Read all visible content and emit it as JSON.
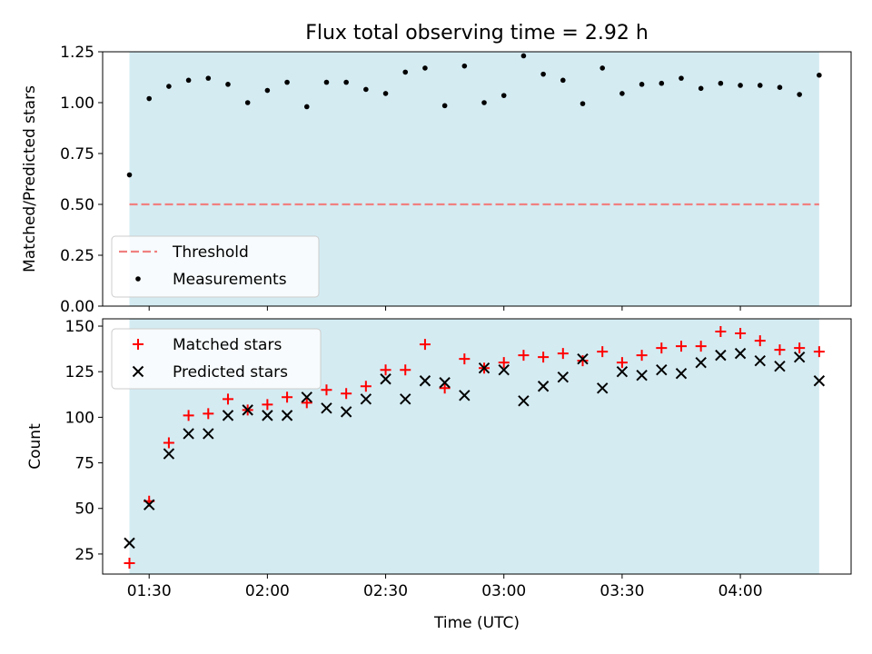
{
  "title": "Flux total observing time = 2.92 h",
  "colors": {
    "shade": "#add8e6",
    "threshold": "#f08080",
    "matched": "#ff0000",
    "predicted": "#000000",
    "measurement": "#000000"
  },
  "chart_data": [
    {
      "type": "scatter",
      "ylabel": "Matched/Predicted stars",
      "xlabel": "",
      "ylim": [
        0,
        1.25
      ],
      "yticks": [
        "0.00",
        "0.25",
        "0.50",
        "0.75",
        "1.00",
        "1.25"
      ],
      "x_span": [
        "01:25",
        "04:20"
      ],
      "legend_position": "lower-left",
      "threshold": {
        "name": "Threshold",
        "value": 0.5,
        "style": "dashed"
      },
      "series": [
        {
          "name": "Measurements",
          "x": [
            "01:25",
            "01:30",
            "01:35",
            "01:40",
            "01:45",
            "01:50",
            "01:55",
            "02:00",
            "02:05",
            "02:10",
            "02:15",
            "02:20",
            "02:25",
            "02:30",
            "02:35",
            "02:40",
            "02:45",
            "02:50",
            "02:55",
            "03:00",
            "03:05",
            "03:10",
            "03:15",
            "03:20",
            "03:25",
            "03:30",
            "03:35",
            "03:40",
            "03:45",
            "03:50",
            "03:55",
            "04:00",
            "04:05",
            "04:10",
            "04:15",
            "04:20"
          ],
          "y": [
            0.645,
            1.02,
            1.08,
            1.11,
            1.12,
            1.09,
            1.0,
            1.06,
            1.1,
            0.98,
            1.1,
            1.1,
            1.065,
            1.045,
            1.15,
            1.17,
            0.985,
            1.18,
            1.0,
            1.035,
            1.23,
            1.14,
            1.11,
            0.995,
            1.17,
            1.045,
            1.09,
            1.095,
            1.12,
            1.07,
            1.095,
            1.085,
            1.085,
            1.075,
            1.04,
            1.135
          ]
        }
      ]
    },
    {
      "type": "scatter",
      "ylabel": "Count",
      "xlabel": "Time (UTC)",
      "ylim": [
        14,
        154
      ],
      "yticks": [
        "25",
        "50",
        "75",
        "100",
        "125",
        "150"
      ],
      "xticks": [
        "01:30",
        "02:00",
        "02:30",
        "03:00",
        "03:30",
        "04:00"
      ],
      "x_span": [
        "01:25",
        "04:20"
      ],
      "legend_position": "top-left",
      "series": [
        {
          "name": "Matched stars",
          "x": [
            "01:25",
            "01:30",
            "01:35",
            "01:40",
            "01:45",
            "01:50",
            "01:55",
            "02:00",
            "02:05",
            "02:10",
            "02:15",
            "02:20",
            "02:25",
            "02:30",
            "02:35",
            "02:40",
            "02:45",
            "02:50",
            "02:55",
            "03:00",
            "03:05",
            "03:10",
            "03:15",
            "03:20",
            "03:25",
            "03:30",
            "03:35",
            "03:40",
            "03:45",
            "03:50",
            "03:55",
            "04:00",
            "04:05",
            "04:10",
            "04:15",
            "04:20"
          ],
          "y": [
            20,
            54,
            86,
            101,
            102,
            110,
            104,
            107,
            111,
            108,
            115,
            113,
            117,
            126,
            126,
            140,
            116,
            132,
            127,
            130,
            134,
            133,
            135,
            131,
            136,
            130,
            134,
            138,
            139,
            139,
            147,
            146,
            142,
            137,
            138,
            136
          ]
        },
        {
          "name": "Predicted stars",
          "x": [
            "01:25",
            "01:30",
            "01:35",
            "01:40",
            "01:45",
            "01:50",
            "01:55",
            "02:00",
            "02:05",
            "02:10",
            "02:15",
            "02:20",
            "02:25",
            "02:30",
            "02:35",
            "02:40",
            "02:45",
            "02:50",
            "02:55",
            "03:00",
            "03:05",
            "03:10",
            "03:15",
            "03:20",
            "03:25",
            "03:30",
            "03:35",
            "03:40",
            "03:45",
            "03:50",
            "03:55",
            "04:00",
            "04:05",
            "04:10",
            "04:15",
            "04:20"
          ],
          "y": [
            31,
            52,
            80,
            91,
            91,
            101,
            104,
            101,
            101,
            111,
            105,
            103,
            110,
            121,
            110,
            120,
            119,
            112,
            127,
            126,
            109,
            117,
            122,
            132,
            116,
            125,
            123,
            126,
            124,
            130,
            134,
            135,
            131,
            128,
            133,
            120
          ]
        }
      ]
    }
  ]
}
